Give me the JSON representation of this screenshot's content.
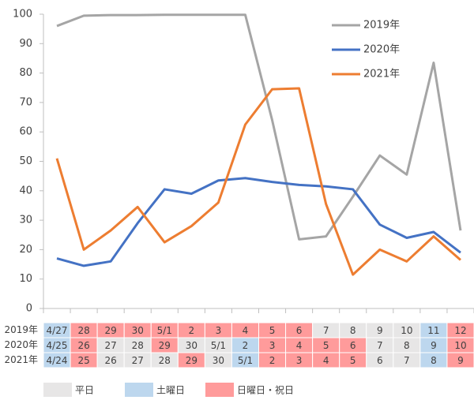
{
  "chart_data": {
    "type": "line",
    "categories": [
      null,
      null,
      null,
      null,
      null,
      null,
      null,
      null,
      null,
      null,
      null,
      null,
      null,
      null,
      null,
      null
    ],
    "ylim": [
      0,
      100
    ],
    "yticks": [
      0,
      10,
      20,
      30,
      40,
      50,
      60,
      70,
      80,
      90,
      100
    ],
    "grid": false,
    "legend": "top-right",
    "series": [
      {
        "name": "2019年",
        "color": "#a5a5a5",
        "values": [
          96,
          99.5,
          99.7,
          99.7,
          99.8,
          99.8,
          99.8,
          99.8,
          64,
          23.5,
          24.5,
          38,
          52,
          45.5,
          83.5,
          26.5
        ]
      },
      {
        "name": "2020年",
        "color": "#4472c4",
        "values": [
          17,
          14.5,
          16,
          29,
          40.5,
          39,
          43.5,
          44.3,
          43,
          42,
          41.5,
          40.5,
          28.5,
          24,
          26,
          19
        ]
      },
      {
        "name": "2021年",
        "color": "#ed7d31",
        "values": [
          51,
          20,
          26.5,
          34.5,
          22.5,
          28,
          36,
          62.5,
          74.5,
          74.8,
          35.5,
          11.5,
          20,
          16,
          24.5,
          16.5
        ]
      }
    ]
  },
  "calendar": {
    "legend": [
      {
        "label": "平日",
        "color": "#e7e6e6"
      },
      {
        "label": "土曜日",
        "color": "#bdd7ee"
      },
      {
        "label": "日曜日・祝日",
        "color": "#ff9b9b"
      }
    ],
    "rows": [
      {
        "label": "2019年",
        "cells": [
          {
            "text": "4/27",
            "kind": 1
          },
          {
            "text": "28",
            "kind": 2
          },
          {
            "text": "29",
            "kind": 2
          },
          {
            "text": "30",
            "kind": 2
          },
          {
            "text": "5/1",
            "kind": 2
          },
          {
            "text": "2",
            "kind": 2
          },
          {
            "text": "3",
            "kind": 2
          },
          {
            "text": "4",
            "kind": 2
          },
          {
            "text": "5",
            "kind": 2
          },
          {
            "text": "6",
            "kind": 2
          },
          {
            "text": "7",
            "kind": 0
          },
          {
            "text": "8",
            "kind": 0
          },
          {
            "text": "9",
            "kind": 0
          },
          {
            "text": "10",
            "kind": 0
          },
          {
            "text": "11",
            "kind": 1
          },
          {
            "text": "12",
            "kind": 2
          }
        ]
      },
      {
        "label": "2020年",
        "cells": [
          {
            "text": "4/25",
            "kind": 1
          },
          {
            "text": "26",
            "kind": 2
          },
          {
            "text": "27",
            "kind": 0
          },
          {
            "text": "28",
            "kind": 0
          },
          {
            "text": "29",
            "kind": 2
          },
          {
            "text": "30",
            "kind": 0
          },
          {
            "text": "5/1",
            "kind": 0
          },
          {
            "text": "2",
            "kind": 1
          },
          {
            "text": "3",
            "kind": 2
          },
          {
            "text": "4",
            "kind": 2
          },
          {
            "text": "5",
            "kind": 2
          },
          {
            "text": "6",
            "kind": 2
          },
          {
            "text": "7",
            "kind": 0
          },
          {
            "text": "8",
            "kind": 0
          },
          {
            "text": "9",
            "kind": 1
          },
          {
            "text": "10",
            "kind": 2
          }
        ]
      },
      {
        "label": "2021年",
        "cells": [
          {
            "text": "4/24",
            "kind": 1
          },
          {
            "text": "25",
            "kind": 2
          },
          {
            "text": "26",
            "kind": 0
          },
          {
            "text": "27",
            "kind": 0
          },
          {
            "text": "28",
            "kind": 0
          },
          {
            "text": "29",
            "kind": 2
          },
          {
            "text": "30",
            "kind": 0
          },
          {
            "text": "5/1",
            "kind": 1
          },
          {
            "text": "2",
            "kind": 2
          },
          {
            "text": "3",
            "kind": 2
          },
          {
            "text": "4",
            "kind": 2
          },
          {
            "text": "5",
            "kind": 2
          },
          {
            "text": "6",
            "kind": 0
          },
          {
            "text": "7",
            "kind": 0
          },
          {
            "text": "8",
            "kind": 1
          },
          {
            "text": "9",
            "kind": 2
          }
        ]
      }
    ]
  }
}
